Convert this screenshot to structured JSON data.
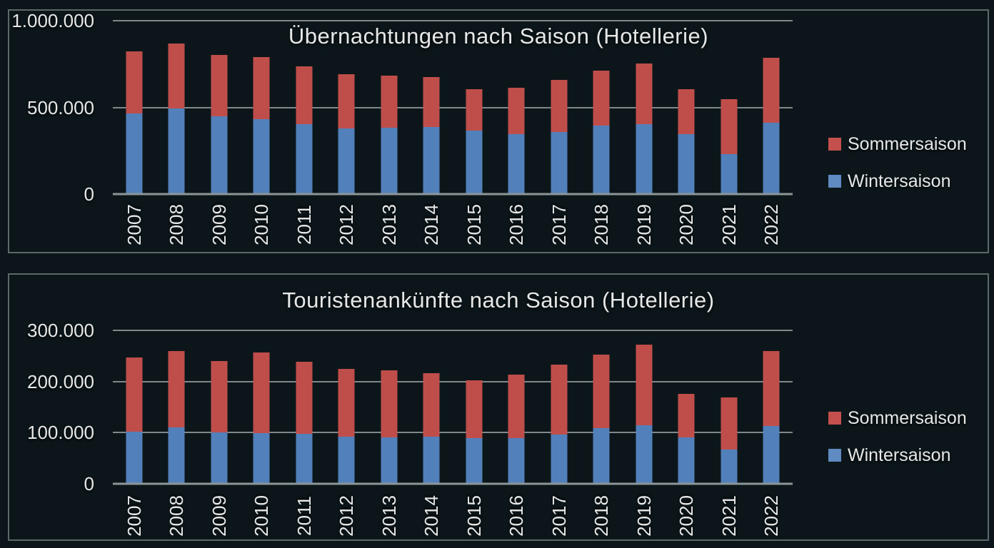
{
  "page": {
    "background_color": "#0c161a",
    "panel_border_color": "#5c686b",
    "text_color": "#e6e8e8",
    "gridline_color": "#7f898b"
  },
  "chart_data": [
    {
      "type": "bar",
      "stacked": true,
      "title": "Übernachtungen nach Saison (Hotellerie)",
      "categories": [
        "2007",
        "2008",
        "2009",
        "2010",
        "2011",
        "2012",
        "2013",
        "2014",
        "2015",
        "2016",
        "2017",
        "2018",
        "2019",
        "2020",
        "2021",
        "2022"
      ],
      "series": [
        {
          "name": "Wintersaison",
          "color": "#5280bb",
          "values": [
            465000,
            495000,
            450000,
            433000,
            405000,
            378000,
            382000,
            385000,
            365000,
            345000,
            360000,
            395000,
            405000,
            344000,
            230000,
            411000
          ]
        },
        {
          "name": "Sommersaison",
          "color": "#bf4e4b",
          "values": [
            357000,
            372000,
            352000,
            358000,
            330000,
            312000,
            302000,
            291000,
            242000,
            270000,
            297000,
            318000,
            348000,
            262000,
            318000,
            376000
          ]
        }
      ],
      "stack_order": "bottom-to-top",
      "ylim": [
        0,
        1000000
      ],
      "yticks": [
        {
          "value": 0,
          "label": "0"
        },
        {
          "value": 500000,
          "label": "500.000"
        },
        {
          "value": 1000000,
          "label": "1.000.000"
        }
      ],
      "grid": true,
      "legend_position": "right",
      "legend_entries": [
        "Sommersaison",
        "Wintersaison"
      ]
    },
    {
      "type": "bar",
      "stacked": true,
      "title": "Touristenankünfte nach Saison (Hotellerie)",
      "categories": [
        "2007",
        "2008",
        "2009",
        "2010",
        "2011",
        "2012",
        "2013",
        "2014",
        "2015",
        "2016",
        "2017",
        "2018",
        "2019",
        "2020",
        "2021",
        "2022"
      ],
      "series": [
        {
          "name": "Wintersaison",
          "color": "#5280bb",
          "values": [
            102000,
            110000,
            101000,
            99000,
            98000,
            92000,
            91000,
            92000,
            89000,
            90000,
            96000,
            109000,
            114000,
            91000,
            67000,
            113000
          ]
        },
        {
          "name": "Sommersaison",
          "color": "#bf4e4b",
          "values": [
            145000,
            150000,
            139000,
            158000,
            140000,
            132000,
            131000,
            125000,
            114000,
            123000,
            137000,
            144000,
            158000,
            85000,
            102000,
            146000
          ]
        }
      ],
      "stack_order": "bottom-to-top",
      "ylim": [
        0,
        300000
      ],
      "yticks": [
        {
          "value": 0,
          "label": "0"
        },
        {
          "value": 100000,
          "label": "100.000"
        },
        {
          "value": 200000,
          "label": "200.000"
        },
        {
          "value": 300000,
          "label": "300.000"
        }
      ],
      "grid": true,
      "legend_position": "right",
      "legend_entries": [
        "Sommersaison",
        "Wintersaison"
      ]
    }
  ]
}
